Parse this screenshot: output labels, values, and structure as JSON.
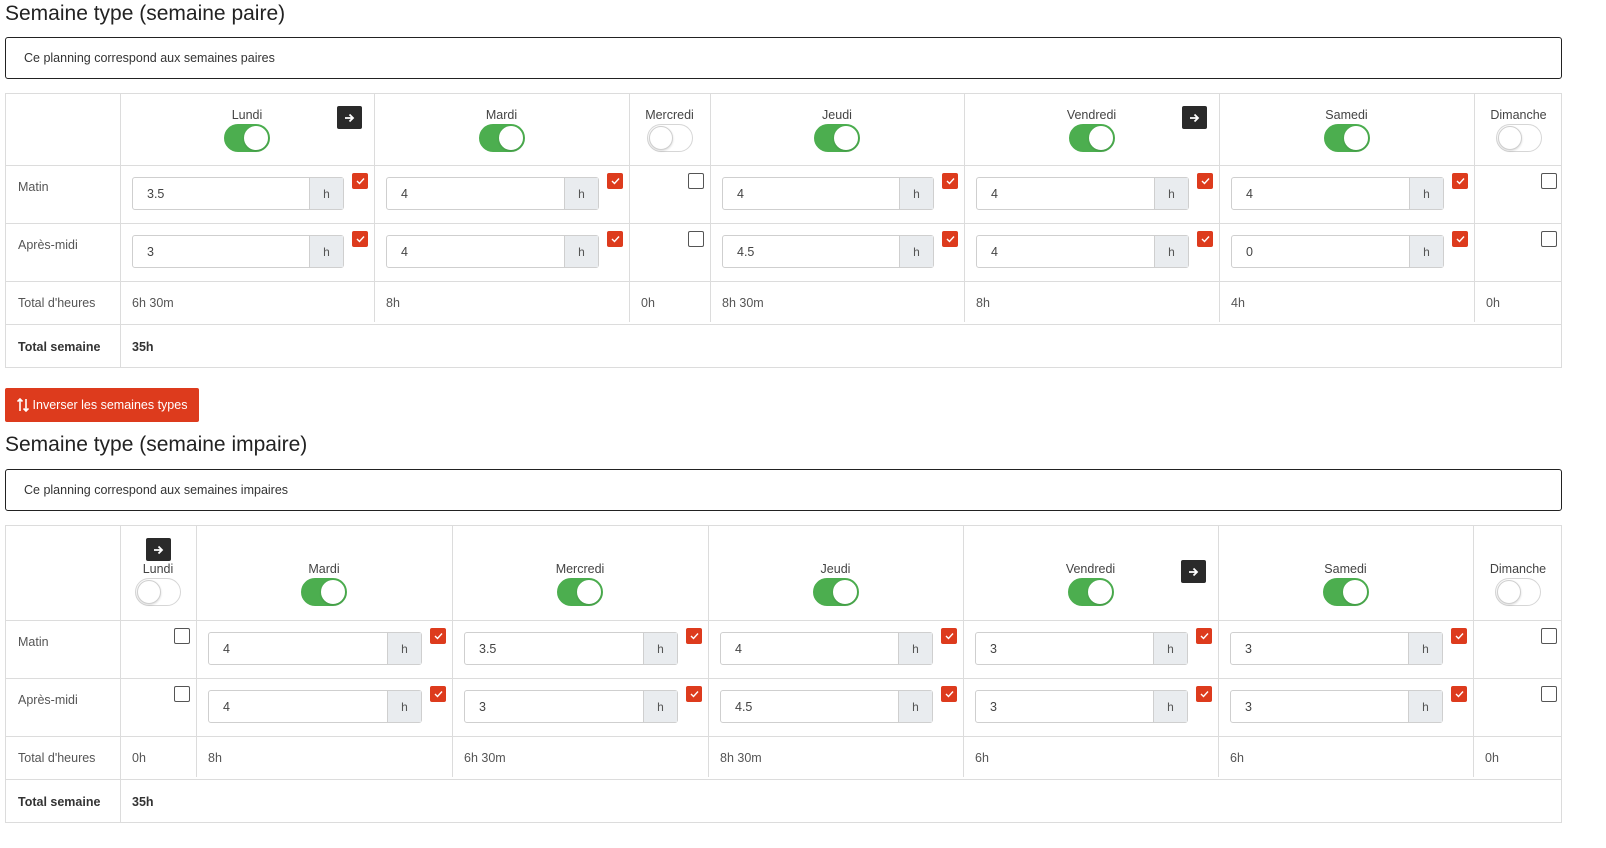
{
  "weeks": [
    {
      "title": "Semaine type (semaine paire)",
      "description": "Ce planning correspond aux semaines paires",
      "row_labels": {
        "morning": "Matin",
        "afternoon": "Après-midi",
        "total": "Total d'heures",
        "week_total": "Total semaine"
      },
      "days": [
        {
          "name": "Lundi",
          "enabled": true,
          "copy_arrow": true,
          "morning": "3.5",
          "afternoon": "3",
          "morning_checked": true,
          "afternoon_checked": true,
          "total": "6h 30m"
        },
        {
          "name": "Mardi",
          "enabled": true,
          "copy_arrow": false,
          "morning": "4",
          "afternoon": "4",
          "morning_checked": true,
          "afternoon_checked": true,
          "total": "8h"
        },
        {
          "name": "Mercredi",
          "enabled": false,
          "copy_arrow": false,
          "morning": null,
          "afternoon": null,
          "morning_checked": false,
          "afternoon_checked": false,
          "total": "0h"
        },
        {
          "name": "Jeudi",
          "enabled": true,
          "copy_arrow": false,
          "morning": "4",
          "afternoon": "4.5",
          "morning_checked": true,
          "afternoon_checked": true,
          "total": "8h 30m"
        },
        {
          "name": "Vendredi",
          "enabled": true,
          "copy_arrow": true,
          "morning": "4",
          "afternoon": "4",
          "morning_checked": true,
          "afternoon_checked": true,
          "total": "8h"
        },
        {
          "name": "Samedi",
          "enabled": true,
          "copy_arrow": false,
          "morning": "4",
          "afternoon": "0",
          "morning_checked": true,
          "afternoon_checked": true,
          "total": "4h"
        },
        {
          "name": "Dimanche",
          "enabled": false,
          "copy_arrow": false,
          "morning": null,
          "afternoon": null,
          "morning_checked": false,
          "afternoon_checked": false,
          "total": "0h"
        }
      ],
      "week_total": "35h"
    },
    {
      "title": "Semaine type (semaine impaire)",
      "description": "Ce planning correspond aux semaines impaires",
      "row_labels": {
        "morning": "Matin",
        "afternoon": "Après-midi",
        "total": "Total d'heures",
        "week_total": "Total semaine"
      },
      "days": [
        {
          "name": "Lundi",
          "enabled": false,
          "copy_arrow": true,
          "morning": null,
          "afternoon": null,
          "morning_checked": false,
          "afternoon_checked": false,
          "total": "0h"
        },
        {
          "name": "Mardi",
          "enabled": true,
          "copy_arrow": false,
          "morning": "4",
          "afternoon": "4",
          "morning_checked": true,
          "afternoon_checked": true,
          "total": "8h"
        },
        {
          "name": "Mercredi",
          "enabled": true,
          "copy_arrow": false,
          "morning": "3.5",
          "afternoon": "3",
          "morning_checked": true,
          "afternoon_checked": true,
          "total": "6h 30m"
        },
        {
          "name": "Jeudi",
          "enabled": true,
          "copy_arrow": false,
          "morning": "4",
          "afternoon": "4.5",
          "morning_checked": true,
          "afternoon_checked": true,
          "total": "8h 30m"
        },
        {
          "name": "Vendredi",
          "enabled": true,
          "copy_arrow": true,
          "morning": "3",
          "afternoon": "3",
          "morning_checked": true,
          "afternoon_checked": true,
          "total": "6h"
        },
        {
          "name": "Samedi",
          "enabled": true,
          "copy_arrow": false,
          "morning": "3",
          "afternoon": "3",
          "morning_checked": true,
          "afternoon_checked": true,
          "total": "6h"
        },
        {
          "name": "Dimanche",
          "enabled": false,
          "copy_arrow": false,
          "morning": null,
          "afternoon": null,
          "morning_checked": false,
          "afternoon_checked": false,
          "total": "0h"
        }
      ],
      "week_total": "35h"
    }
  ],
  "input_unit": "h",
  "invert_button_label": "Inverser les semaines types",
  "colors": {
    "toggle_on": "#4cae4f",
    "checkbox_on": "#dd3b1d",
    "invert_button": "#dd3b1d",
    "arrow_button": "#2a2a2a"
  },
  "icons": {
    "copy_arrow": "arrow-right-icon",
    "invert": "swap-vertical-icon",
    "checkbox": "check-icon"
  }
}
